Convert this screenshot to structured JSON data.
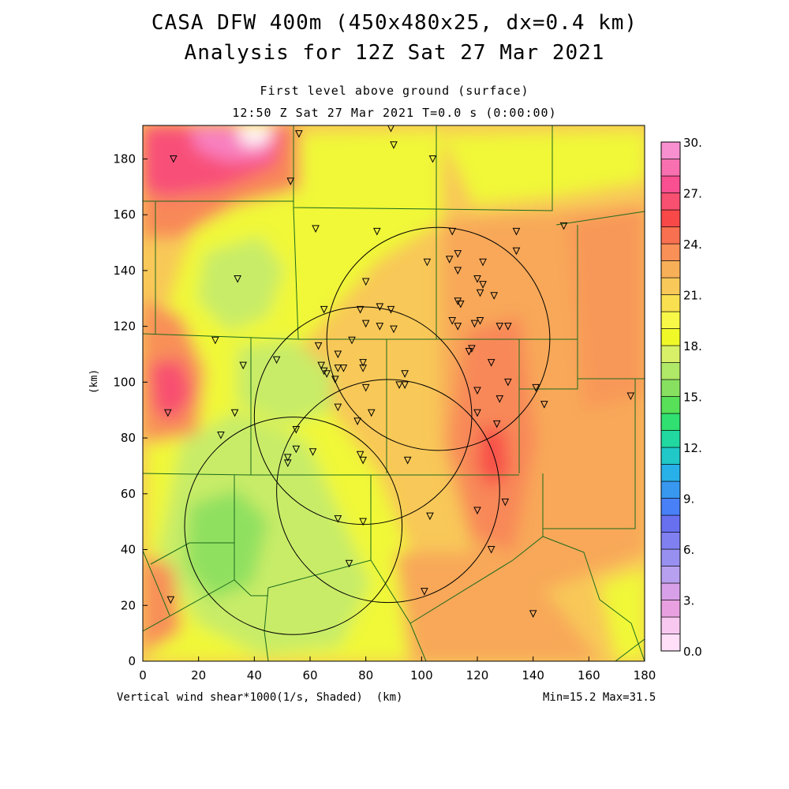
{
  "titles": {
    "line1": "CASA DFW 400m (450x480x25, dx=0.4 km)",
    "line2": "Analysis for 12Z Sat 27 Mar 2021",
    "line3": "First level above ground (surface)",
    "line4": "12:50 Z Sat 27 Mar 2021   T=0.0 s (0:00:00)"
  },
  "axes": {
    "x_label": "(km)",
    "y_label": "(km)",
    "x_ticks": [
      "0",
      "20",
      "40",
      "60",
      "80",
      "100",
      "120",
      "140",
      "160",
      "180"
    ],
    "y_ticks": [
      "0",
      "20",
      "40",
      "60",
      "80",
      "100",
      "120",
      "140",
      "160",
      "180"
    ],
    "x_range": [
      0,
      180
    ],
    "y_range": [
      0,
      192
    ]
  },
  "field_label": "Vertical wind shear*1000(1/s, Shaded)",
  "minmax": "Min=15.2 Max=31.5",
  "colorbar": {
    "labels": [
      "30.",
      "27.",
      "24.",
      "21.",
      "18.",
      "15.",
      "12.",
      "9.",
      "6.",
      "3.",
      "0.0"
    ],
    "colors": [
      "#ffe0f8",
      "#f8c8f0",
      "#e8a0e0",
      "#d8a0e8",
      "#b8a0f0",
      "#9890f0",
      "#8080f0",
      "#6870f0",
      "#4880f8",
      "#3898f0",
      "#28b0e8",
      "#20c8c8",
      "#20d8a0",
      "#30e070",
      "#58e058",
      "#88e060",
      "#b0e868",
      "#d8f068",
      "#f0f828",
      "#f8f848",
      "#f8e050",
      "#f8c858",
      "#f8b058",
      "#f89058",
      "#f87050",
      "#f84848",
      "#f85070",
      "#f85090",
      "#f870b0",
      "#f890d0"
    ]
  },
  "radar_rings": [
    {
      "cx": 54,
      "cy": 48.5,
      "r": 39
    },
    {
      "cx": 79,
      "cy": 88,
      "r": 39
    },
    {
      "cx": 88,
      "cy": 61,
      "r": 40
    },
    {
      "cx": 106,
      "cy": 115.5,
      "r": 40
    }
  ],
  "stations": [
    [
      56,
      189
    ],
    [
      89,
      191
    ],
    [
      90,
      185
    ],
    [
      104,
      180
    ],
    [
      11,
      180
    ],
    [
      53,
      172
    ],
    [
      62,
      155
    ],
    [
      84,
      154
    ],
    [
      111,
      154
    ],
    [
      134,
      154
    ],
    [
      151,
      156
    ],
    [
      102,
      143
    ],
    [
      110,
      144
    ],
    [
      113,
      146
    ],
    [
      122,
      143
    ],
    [
      134,
      147
    ],
    [
      34,
      137
    ],
    [
      80,
      136
    ],
    [
      120,
      137
    ],
    [
      122,
      135
    ],
    [
      113,
      140
    ],
    [
      121,
      132
    ],
    [
      126,
      131
    ],
    [
      65,
      126
    ],
    [
      78,
      126
    ],
    [
      85,
      127
    ],
    [
      89,
      126
    ],
    [
      114,
      128
    ],
    [
      113,
      129
    ],
    [
      113,
      120
    ],
    [
      111,
      122
    ],
    [
      119,
      121
    ],
    [
      121,
      122
    ],
    [
      128,
      120
    ],
    [
      131,
      120
    ],
    [
      80,
      121
    ],
    [
      85,
      120
    ],
    [
      90,
      119
    ],
    [
      75,
      115
    ],
    [
      63,
      113
    ],
    [
      26,
      115
    ],
    [
      118,
      112
    ],
    [
      117,
      111
    ],
    [
      48,
      108
    ],
    [
      36,
      106
    ],
    [
      64,
      106
    ],
    [
      70,
      110
    ],
    [
      65,
      104
    ],
    [
      66,
      103
    ],
    [
      70,
      105
    ],
    [
      72,
      105
    ],
    [
      69,
      101
    ],
    [
      79,
      107
    ],
    [
      79,
      105
    ],
    [
      125,
      107
    ],
    [
      94,
      103
    ],
    [
      92,
      99
    ],
    [
      80,
      98
    ],
    [
      94,
      99
    ],
    [
      120,
      97
    ],
    [
      128,
      94
    ],
    [
      131,
      100
    ],
    [
      141,
      98
    ],
    [
      144,
      92
    ],
    [
      175,
      95
    ],
    [
      9,
      89
    ],
    [
      33,
      89
    ],
    [
      70,
      91
    ],
    [
      82,
      89
    ],
    [
      120,
      89
    ],
    [
      77,
      86
    ],
    [
      55,
      83
    ],
    [
      28,
      81
    ],
    [
      55,
      76
    ],
    [
      61,
      75
    ],
    [
      52,
      73
    ],
    [
      78,
      74
    ],
    [
      79,
      72
    ],
    [
      95,
      72
    ],
    [
      52,
      71
    ],
    [
      127,
      85
    ],
    [
      130,
      57
    ],
    [
      120,
      54
    ],
    [
      70,
      51
    ],
    [
      79,
      50
    ],
    [
      103,
      52
    ],
    [
      125,
      40
    ],
    [
      74,
      35
    ],
    [
      101,
      25
    ],
    [
      140,
      17
    ],
    [
      10,
      22
    ]
  ]
}
